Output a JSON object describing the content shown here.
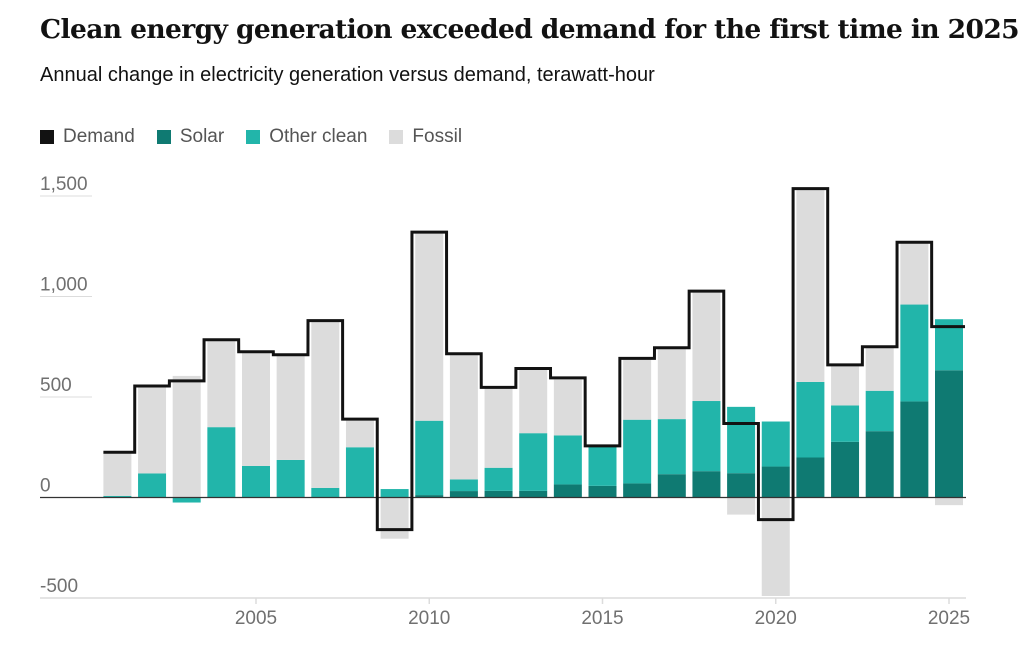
{
  "title": "Clean energy generation exceeded demand for the first time in 2025",
  "subtitle": "Annual change in electricity generation versus demand, terawatt-hour",
  "legend": [
    {
      "label": "Demand",
      "color": "#121212"
    },
    {
      "label": "Solar",
      "color": "#0f7a72"
    },
    {
      "label": "Other clean",
      "color": "#22b5aa"
    },
    {
      "label": "Fossil",
      "color": "#dcdcdc"
    }
  ],
  "chart_data": {
    "type": "bar",
    "title": "Clean energy generation exceeded demand for the first time in 2025",
    "ylabel": "TWh",
    "ylim": [
      -500,
      1500
    ],
    "yticks": [
      "1,500",
      "1,000",
      "500",
      "0",
      "-500"
    ],
    "ytick_values": [
      1500,
      1000,
      500,
      0,
      -500
    ],
    "xticks": [
      "2005",
      "2010",
      "2015",
      "2020",
      "2025"
    ],
    "x": [
      2001,
      2002,
      2003,
      2004,
      2005,
      2006,
      2007,
      2008,
      2009,
      2010,
      2011,
      2012,
      2013,
      2014,
      2015,
      2016,
      2017,
      2018,
      2019,
      2020,
      2021,
      2022,
      2023,
      2024,
      2025
    ],
    "series": [
      {
        "name": "Solar",
        "values": [
          0,
          0,
          0,
          0,
          0,
          0,
          0,
          0,
          0,
          12,
          32,
          33,
          33,
          65,
          58,
          70,
          116,
          131,
          121,
          154,
          199,
          277,
          330,
          478,
          633
        ]
      },
      {
        "name": "Other clean",
        "values": [
          8,
          120,
          -25,
          350,
          157,
          187,
          48,
          250,
          42,
          370,
          58,
          115,
          287,
          244,
          194,
          317,
          274,
          349,
          330,
          224,
          376,
          181,
          201,
          482,
          254
        ]
      },
      {
        "name": "Fossil",
        "values": [
          217,
          430,
          605,
          433,
          563,
          520,
          827,
          137,
          -205,
          938,
          620,
          395,
          317,
          278,
          0,
          300,
          352,
          540,
          -85,
          -490,
          957,
          195,
          214,
          304,
          -38
        ]
      },
      {
        "name": "Demand",
        "type": "step",
        "values": [
          225,
          555,
          580,
          785,
          725,
          710,
          880,
          390,
          -160,
          1320,
          715,
          548,
          642,
          595,
          257,
          692,
          745,
          1027,
          368,
          -110,
          1537,
          660,
          750,
          1270,
          850
        ]
      }
    ]
  }
}
